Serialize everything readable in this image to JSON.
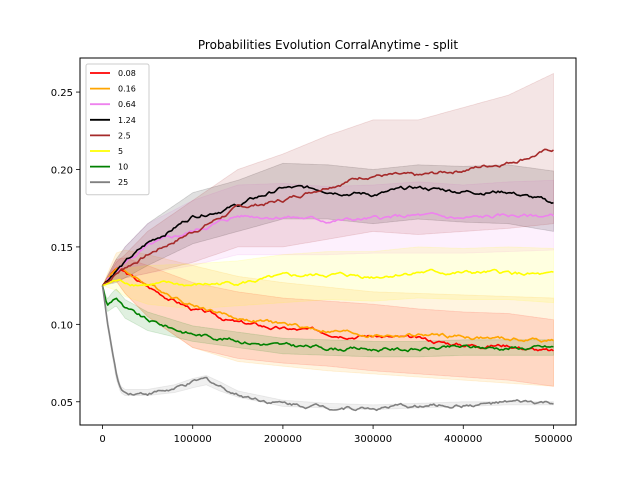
{
  "chart_data": {
    "type": "line",
    "title": "Probabilities Evolution CorralAnytime  - split",
    "xlabel": "",
    "ylabel": "",
    "xlim": [
      -25000,
      525000
    ],
    "ylim": [
      0.035,
      0.272
    ],
    "xticks": [
      0,
      100000,
      200000,
      300000,
      400000,
      500000
    ],
    "xtick_labels": [
      "0",
      "100000",
      "200000",
      "300000",
      "400000",
      "500000"
    ],
    "yticks": [
      0.05,
      0.1,
      0.15,
      0.2,
      0.25
    ],
    "ytick_labels": [
      "0.05",
      "0.10",
      "0.15",
      "0.20",
      "0.25"
    ],
    "grid": false,
    "legend_position": "top-left",
    "series": [
      {
        "name": "0.08",
        "color": "#ff0000",
        "x": [
          0,
          15000,
          25000,
          50000,
          100000,
          150000,
          200000,
          250000,
          300000,
          350000,
          400000,
          450000,
          500000
        ],
        "y": [
          0.125,
          0.136,
          0.133,
          0.124,
          0.11,
          0.101,
          0.097,
          0.095,
          0.093,
          0.09,
          0.087,
          0.087,
          0.082
        ],
        "lower": [
          0.125,
          0.128,
          0.12,
          0.105,
          0.085,
          0.078,
          0.075,
          0.073,
          0.07,
          0.068,
          0.066,
          0.064,
          0.06
        ],
        "upper": [
          0.125,
          0.142,
          0.143,
          0.138,
          0.127,
          0.121,
          0.117,
          0.115,
          0.113,
          0.11,
          0.108,
          0.107,
          0.103
        ]
      },
      {
        "name": "0.16",
        "color": "#ffa500",
        "x": [
          0,
          15000,
          25000,
          50000,
          100000,
          150000,
          200000,
          250000,
          300000,
          350000,
          400000,
          450000,
          500000
        ],
        "y": [
          0.125,
          0.137,
          0.134,
          0.126,
          0.113,
          0.104,
          0.1,
          0.096,
          0.093,
          0.093,
          0.092,
          0.09,
          0.09
        ],
        "lower": [
          0.125,
          0.128,
          0.12,
          0.105,
          0.085,
          0.076,
          0.073,
          0.07,
          0.068,
          0.066,
          0.064,
          0.062,
          0.06
        ],
        "upper": [
          0.125,
          0.146,
          0.148,
          0.145,
          0.138,
          0.131,
          0.127,
          0.124,
          0.121,
          0.12,
          0.119,
          0.118,
          0.117
        ]
      },
      {
        "name": "0.64",
        "color": "#ee82ee",
        "x": [
          0,
          15000,
          25000,
          50000,
          100000,
          150000,
          200000,
          250000,
          300000,
          350000,
          400000,
          450000,
          500000
        ],
        "y": [
          0.125,
          0.134,
          0.14,
          0.15,
          0.16,
          0.17,
          0.17,
          0.167,
          0.168,
          0.17,
          0.168,
          0.17,
          0.17
        ],
        "lower": [
          0.125,
          0.128,
          0.13,
          0.133,
          0.138,
          0.145,
          0.145,
          0.145,
          0.146,
          0.146,
          0.146,
          0.147,
          0.148
        ],
        "upper": [
          0.125,
          0.14,
          0.15,
          0.165,
          0.18,
          0.19,
          0.191,
          0.189,
          0.19,
          0.192,
          0.19,
          0.192,
          0.193
        ]
      },
      {
        "name": "1.24",
        "color": "#000000",
        "x": [
          0,
          15000,
          25000,
          50000,
          100000,
          150000,
          200000,
          250000,
          300000,
          350000,
          400000,
          450000,
          500000
        ],
        "y": [
          0.125,
          0.135,
          0.14,
          0.152,
          0.17,
          0.177,
          0.188,
          0.187,
          0.184,
          0.188,
          0.186,
          0.186,
          0.178
        ],
        "lower": [
          0.125,
          0.127,
          0.13,
          0.138,
          0.152,
          0.16,
          0.168,
          0.168,
          0.165,
          0.168,
          0.166,
          0.165,
          0.16
        ],
        "upper": [
          0.125,
          0.142,
          0.15,
          0.165,
          0.185,
          0.193,
          0.204,
          0.203,
          0.2,
          0.203,
          0.202,
          0.203,
          0.199
        ]
      },
      {
        "name": "2.5",
        "color": "#a52a2a",
        "x": [
          0,
          15000,
          25000,
          50000,
          100000,
          150000,
          200000,
          250000,
          300000,
          350000,
          400000,
          450000,
          500000
        ],
        "y": [
          0.125,
          0.133,
          0.137,
          0.145,
          0.16,
          0.175,
          0.18,
          0.19,
          0.197,
          0.195,
          0.2,
          0.205,
          0.213
        ],
        "lower": [
          0.125,
          0.128,
          0.13,
          0.133,
          0.14,
          0.15,
          0.15,
          0.155,
          0.16,
          0.158,
          0.16,
          0.162,
          0.165
        ],
        "upper": [
          0.125,
          0.14,
          0.145,
          0.16,
          0.18,
          0.2,
          0.21,
          0.222,
          0.232,
          0.232,
          0.24,
          0.248,
          0.262
        ]
      },
      {
        "name": "5",
        "color": "#ffff00",
        "x": [
          0,
          15000,
          25000,
          50000,
          100000,
          150000,
          200000,
          250000,
          300000,
          350000,
          400000,
          450000,
          500000
        ],
        "y": [
          0.125,
          0.128,
          0.127,
          0.126,
          0.125,
          0.127,
          0.13,
          0.132,
          0.131,
          0.134,
          0.133,
          0.133,
          0.131
        ],
        "lower": [
          0.125,
          0.122,
          0.118,
          0.113,
          0.11,
          0.112,
          0.114,
          0.116,
          0.115,
          0.117,
          0.116,
          0.116,
          0.114
        ],
        "upper": [
          0.125,
          0.134,
          0.136,
          0.138,
          0.139,
          0.141,
          0.145,
          0.147,
          0.147,
          0.15,
          0.149,
          0.15,
          0.149
        ]
      },
      {
        "name": "10",
        "color": "#008000",
        "x": [
          0,
          5000,
          10000,
          15000,
          25000,
          50000,
          100000,
          150000,
          200000,
          250000,
          300000,
          350000,
          400000,
          450000,
          500000
        ],
        "y": [
          0.125,
          0.112,
          0.115,
          0.118,
          0.11,
          0.102,
          0.094,
          0.09,
          0.086,
          0.085,
          0.084,
          0.084,
          0.085,
          0.085,
          0.085
        ],
        "lower": [
          0.125,
          0.108,
          0.11,
          0.112,
          0.104,
          0.096,
          0.089,
          0.085,
          0.081,
          0.08,
          0.079,
          0.079,
          0.08,
          0.08,
          0.08
        ],
        "upper": [
          0.125,
          0.116,
          0.12,
          0.123,
          0.116,
          0.108,
          0.099,
          0.095,
          0.091,
          0.09,
          0.089,
          0.089,
          0.09,
          0.09,
          0.09
        ]
      },
      {
        "name": "25",
        "color": "#808080",
        "x": [
          0,
          5000,
          10000,
          15000,
          20000,
          25000,
          50000,
          80000,
          100000,
          115000,
          130000,
          150000,
          200000,
          250000,
          300000,
          350000,
          400000,
          450000,
          500000
        ],
        "y": [
          0.125,
          0.103,
          0.085,
          0.068,
          0.058,
          0.056,
          0.056,
          0.058,
          0.062,
          0.064,
          0.06,
          0.055,
          0.049,
          0.047,
          0.046,
          0.047,
          0.048,
          0.049,
          0.049
        ],
        "lower": [
          0.125,
          0.1,
          0.082,
          0.065,
          0.056,
          0.054,
          0.054,
          0.056,
          0.059,
          0.061,
          0.057,
          0.053,
          0.047,
          0.046,
          0.045,
          0.046,
          0.047,
          0.048,
          0.048
        ],
        "upper": [
          0.125,
          0.106,
          0.088,
          0.071,
          0.06,
          0.058,
          0.058,
          0.061,
          0.065,
          0.067,
          0.063,
          0.057,
          0.051,
          0.049,
          0.048,
          0.049,
          0.05,
          0.05,
          0.05
        ]
      }
    ]
  }
}
